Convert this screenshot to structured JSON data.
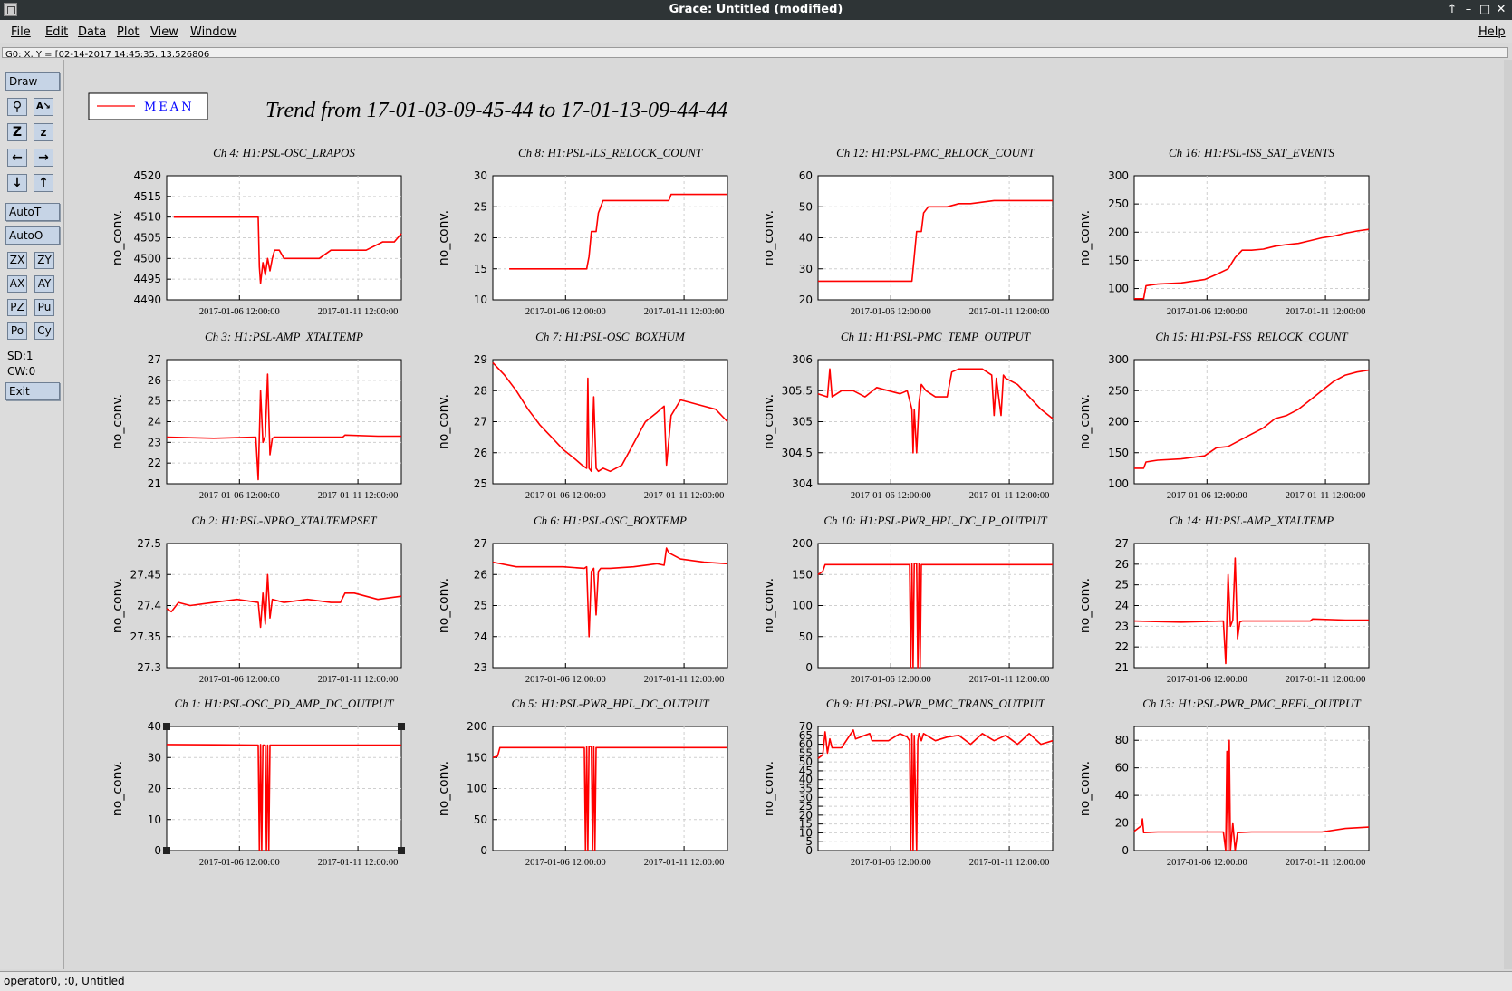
{
  "window": {
    "title": "Grace: Untitled (modified)"
  },
  "menu": {
    "file": "File",
    "edit": "Edit",
    "data": "Data",
    "plot": "Plot",
    "view": "View",
    "window": "Window",
    "help": "Help"
  },
  "locator": {
    "text": "G0: X, Y = [02-14-2017 14:45:35, 13.526806"
  },
  "toolbar": {
    "draw": "Draw",
    "autot": "AutoT",
    "autoo": "AutoO",
    "zx": "ZX",
    "zy": "ZY",
    "ax": "AX",
    "ay": "AY",
    "pz": "PZ",
    "pu": "Pu",
    "po": "Po",
    "cy": "Cy",
    "sd": "SD:1",
    "cw": "CW:0",
    "exit": "Exit",
    "icons": [
      "magnifier-icon",
      "autoscale-text-icon",
      "zoom-icon",
      "zoom-small-icon",
      "arrow-left-icon",
      "arrow-right-icon",
      "arrow-down-icon",
      "arrow-up-icon"
    ]
  },
  "status": {
    "text": "operator0, :0, Untitled"
  },
  "chart_data": {
    "type": "line",
    "title": "Trend from 17-01-03-09-45-44 to 17-01-13-09-44-44",
    "legend": {
      "entries": [
        "MEAN"
      ],
      "placement": "top-left",
      "color": "#ff0000"
    },
    "xticks": [
      "2017-01-06 12:00:00",
      "2017-01-11 12:00:00"
    ],
    "panels": [
      {
        "title": "Ch 4: H1:PSL-OSC_LRAPOS",
        "ylabel": "no_conv.",
        "ylim": [
          4490,
          4520
        ],
        "yticks": [
          "4490",
          "4495",
          "4500",
          "4505",
          "4510",
          "4515",
          "4520"
        ],
        "x": [
          0.03,
          0.39,
          0.395,
          0.4,
          0.41,
          0.42,
          0.43,
          0.44,
          0.45,
          0.46,
          0.48,
          0.5,
          0.53,
          0.55,
          0.6,
          0.65,
          0.7,
          0.75,
          0.85,
          0.92,
          0.97,
          1.0
        ],
        "y": [
          4510,
          4510,
          4498,
          4494,
          4499,
          4496,
          4500,
          4497,
          4500,
          4502,
          4502,
          4500,
          4500,
          4500,
          4500,
          4500,
          4502,
          4502,
          4502,
          4504,
          4504,
          4506
        ]
      },
      {
        "title": "Ch 8: H1:PSL-ILS_RELOCK_COUNT",
        "ylabel": "no_conv.",
        "ylim": [
          10,
          30
        ],
        "yticks": [
          "10",
          "15",
          "20",
          "25",
          "30"
        ],
        "x": [
          0.07,
          0.4,
          0.41,
          0.42,
          0.44,
          0.45,
          0.47,
          0.5,
          0.55,
          0.6,
          0.7,
          0.75,
          0.76,
          0.85,
          1.0
        ],
        "y": [
          15,
          15,
          17,
          21,
          21,
          24,
          26,
          26,
          26,
          26,
          26,
          26,
          27,
          27,
          27
        ]
      },
      {
        "title": "Ch 12: H1:PSL-PMC_RELOCK_COUNT",
        "ylabel": "no_conv.",
        "ylim": [
          20,
          60
        ],
        "yticks": [
          "20",
          "30",
          "40",
          "50",
          "60"
        ],
        "x": [
          0.0,
          0.4,
          0.41,
          0.42,
          0.44,
          0.45,
          0.47,
          0.55,
          0.6,
          0.65,
          0.75,
          0.85,
          1.0
        ],
        "y": [
          26,
          26,
          34,
          42,
          42,
          48,
          50,
          50,
          51,
          51,
          52,
          52,
          52
        ]
      },
      {
        "title": "Ch 16: H1:PSL-ISS_SAT_EVENTS",
        "ylabel": "no_conv.",
        "ylim": [
          80,
          300
        ],
        "yticks": [
          "100",
          "150",
          "200",
          "250",
          "300"
        ],
        "x": [
          0.0,
          0.04,
          0.05,
          0.1,
          0.2,
          0.3,
          0.35,
          0.4,
          0.43,
          0.46,
          0.5,
          0.55,
          0.6,
          0.65,
          0.7,
          0.75,
          0.8,
          0.85,
          0.9,
          0.95,
          1.0
        ],
        "y": [
          82,
          82,
          105,
          108,
          110,
          116,
          125,
          135,
          155,
          168,
          168,
          170,
          175,
          178,
          180,
          185,
          190,
          193,
          198,
          202,
          205
        ]
      },
      {
        "title": "Ch 3: H1:PSL-AMP_XTALTEMP",
        "ylabel": "no_conv.",
        "ylim": [
          21,
          27
        ],
        "yticks": [
          "21",
          "22",
          "23",
          "24",
          "25",
          "26",
          "27"
        ],
        "x": [
          0.0,
          0.2,
          0.38,
          0.39,
          0.4,
          0.41,
          0.42,
          0.43,
          0.44,
          0.45,
          0.46,
          0.6,
          0.75,
          0.76,
          0.9,
          1.0
        ],
        "y": [
          23.25,
          23.2,
          23.25,
          21.2,
          25.5,
          23.0,
          23.3,
          26.3,
          22.4,
          23.2,
          23.25,
          23.25,
          23.25,
          23.35,
          23.3,
          23.3
        ]
      },
      {
        "title": "Ch 7: H1:PSL-OSC_BOXHUM",
        "ylabel": "no_conv.",
        "ylim": [
          25,
          29
        ],
        "yticks": [
          "25",
          "26",
          "27",
          "28",
          "29"
        ],
        "x": [
          0.0,
          0.05,
          0.1,
          0.15,
          0.2,
          0.25,
          0.3,
          0.35,
          0.38,
          0.4,
          0.405,
          0.41,
          0.42,
          0.43,
          0.44,
          0.45,
          0.47,
          0.5,
          0.55,
          0.6,
          0.65,
          0.7,
          0.73,
          0.74,
          0.76,
          0.8,
          0.85,
          0.9,
          0.95,
          1.0
        ],
        "y": [
          28.9,
          28.5,
          28.0,
          27.4,
          26.9,
          26.5,
          26.1,
          25.8,
          25.6,
          25.5,
          28.4,
          25.5,
          25.4,
          27.8,
          25.5,
          25.4,
          25.5,
          25.4,
          25.6,
          26.3,
          27.0,
          27.3,
          27.5,
          25.6,
          27.2,
          27.7,
          27.6,
          27.5,
          27.4,
          27.0
        ]
      },
      {
        "title": "Ch 11: H1:PSL-PMC_TEMP_OUTPUT",
        "ylabel": "no_conv.",
        "ylim": [
          304,
          306
        ],
        "yticks": [
          "304",
          "304.5",
          "305",
          "305.5",
          "306"
        ],
        "x": [
          0.0,
          0.04,
          0.05,
          0.06,
          0.1,
          0.15,
          0.2,
          0.25,
          0.3,
          0.35,
          0.38,
          0.4,
          0.405,
          0.41,
          0.42,
          0.43,
          0.44,
          0.46,
          0.5,
          0.55,
          0.57,
          0.6,
          0.65,
          0.7,
          0.74,
          0.75,
          0.76,
          0.78,
          0.79,
          0.8,
          0.85,
          0.9,
          0.95,
          1.0
        ],
        "y": [
          305.45,
          305.4,
          305.85,
          305.4,
          305.5,
          305.5,
          305.4,
          305.55,
          305.5,
          305.45,
          305.5,
          305.2,
          304.5,
          305.2,
          304.5,
          305.3,
          305.6,
          305.5,
          305.4,
          305.4,
          305.8,
          305.85,
          305.85,
          305.85,
          305.75,
          305.1,
          305.7,
          305.1,
          305.75,
          305.7,
          305.6,
          305.4,
          305.2,
          305.05
        ]
      },
      {
        "title": "Ch 15: H1:PSL-FSS_RELOCK_COUNT",
        "ylabel": "no_conv.",
        "ylim": [
          100,
          300
        ],
        "yticks": [
          "100",
          "150",
          "200",
          "250",
          "300"
        ],
        "x": [
          0.0,
          0.04,
          0.05,
          0.1,
          0.2,
          0.3,
          0.35,
          0.4,
          0.45,
          0.5,
          0.55,
          0.6,
          0.65,
          0.7,
          0.75,
          0.8,
          0.85,
          0.9,
          0.95,
          1.0
        ],
        "y": [
          125,
          125,
          135,
          138,
          140,
          145,
          158,
          160,
          170,
          180,
          190,
          205,
          210,
          220,
          235,
          250,
          265,
          275,
          280,
          283
        ]
      },
      {
        "title": "Ch 2: H1:PSL-NPRO_XTALTEMPSET",
        "ylabel": "no_conv.",
        "ylim": [
          27.3,
          27.5
        ],
        "yticks": [
          "27.3",
          "27.35",
          "27.4",
          "27.45",
          "27.5"
        ],
        "x": [
          0.0,
          0.02,
          0.05,
          0.1,
          0.2,
          0.3,
          0.39,
          0.4,
          0.41,
          0.42,
          0.43,
          0.44,
          0.45,
          0.5,
          0.6,
          0.7,
          0.74,
          0.76,
          0.8,
          0.9,
          1.0
        ],
        "y": [
          27.395,
          27.39,
          27.405,
          27.4,
          27.405,
          27.41,
          27.405,
          27.365,
          27.42,
          27.37,
          27.45,
          27.38,
          27.41,
          27.405,
          27.41,
          27.405,
          27.405,
          27.42,
          27.42,
          27.41,
          27.415
        ]
      },
      {
        "title": "Ch 6: H1:PSL-OSC_BOXTEMP",
        "ylabel": "no_conv.",
        "ylim": [
          23,
          27
        ],
        "yticks": [
          "23",
          "24",
          "25",
          "26",
          "27"
        ],
        "x": [
          0.0,
          0.1,
          0.2,
          0.3,
          0.39,
          0.4,
          0.41,
          0.42,
          0.43,
          0.44,
          0.45,
          0.46,
          0.5,
          0.6,
          0.7,
          0.73,
          0.74,
          0.75,
          0.8,
          0.9,
          1.0
        ],
        "y": [
          26.4,
          26.25,
          26.25,
          26.25,
          26.2,
          26.25,
          24.0,
          26.1,
          26.2,
          24.7,
          26.1,
          26.2,
          26.2,
          26.25,
          26.35,
          26.3,
          26.85,
          26.7,
          26.5,
          26.4,
          26.35
        ]
      },
      {
        "title": "Ch 10: H1:PSL-PWR_HPL_DC_LP_OUTPUT",
        "ylabel": "no_conv.",
        "ylim": [
          0,
          200
        ],
        "yticks": [
          "0",
          "50",
          "100",
          "150",
          "200"
        ],
        "x": [
          0.0,
          0.02,
          0.03,
          0.2,
          0.39,
          0.395,
          0.4,
          0.405,
          0.41,
          0.42,
          0.425,
          0.43,
          0.435,
          0.44,
          0.5,
          0.7,
          0.9,
          1.0
        ],
        "y": [
          150,
          155,
          166,
          166,
          166,
          0,
          168,
          0,
          168,
          168,
          0,
          168,
          0,
          166,
          166,
          166,
          166,
          166
        ]
      },
      {
        "title": "Ch 14: H1:PSL-AMP_XTALTEMP",
        "ylabel": "no_conv.",
        "ylim": [
          21,
          27
        ],
        "yticks": [
          "21",
          "22",
          "23",
          "24",
          "25",
          "26",
          "27"
        ],
        "x": [
          0.0,
          0.2,
          0.38,
          0.39,
          0.4,
          0.41,
          0.42,
          0.43,
          0.44,
          0.45,
          0.46,
          0.6,
          0.75,
          0.76,
          0.9,
          1.0
        ],
        "y": [
          23.25,
          23.2,
          23.25,
          21.2,
          25.5,
          23.0,
          23.3,
          26.3,
          22.4,
          23.2,
          23.25,
          23.25,
          23.25,
          23.35,
          23.3,
          23.3
        ]
      },
      {
        "title": "Ch 1: H1:PSL-OSC_PD_AMP_DC_OUTPUT",
        "ylabel": "no_conv.",
        "ylim": [
          0,
          40
        ],
        "yticks": [
          "0",
          "10",
          "20",
          "30",
          "40"
        ],
        "x": [
          0.0,
          0.2,
          0.39,
          0.395,
          0.4,
          0.405,
          0.41,
          0.42,
          0.425,
          0.43,
          0.435,
          0.44,
          0.6,
          0.8,
          1.0
        ],
        "y": [
          34.2,
          34.1,
          34.0,
          0,
          34.2,
          0,
          34.0,
          34.0,
          0,
          34.0,
          0,
          34.0,
          34.0,
          34.0,
          34.0
        ]
      },
      {
        "title": "Ch 5: H1:PSL-PWR_HPL_DC_OUTPUT",
        "ylabel": "no_conv.",
        "ylim": [
          0,
          200
        ],
        "yticks": [
          "0",
          "50",
          "100",
          "150",
          "200"
        ],
        "x": [
          0.0,
          0.02,
          0.03,
          0.2,
          0.39,
          0.395,
          0.4,
          0.405,
          0.41,
          0.42,
          0.425,
          0.43,
          0.435,
          0.44,
          0.5,
          0.7,
          0.9,
          1.0
        ],
        "y": [
          150,
          152,
          166,
          166,
          166,
          0,
          168,
          0,
          168,
          168,
          0,
          168,
          0,
          166,
          166,
          166,
          166,
          166
        ]
      },
      {
        "title": "Ch 9: H1:PSL-PWR_PMC_TRANS_OUTPUT",
        "ylabel": "no_conv.",
        "ylim": [
          0,
          70
        ],
        "yticks": [
          "0",
          "5",
          "10",
          "15",
          "20",
          "25",
          "30",
          "35",
          "40",
          "45",
          "50",
          "55",
          "60",
          "65",
          "70"
        ],
        "x": [
          0.0,
          0.02,
          0.03,
          0.04,
          0.05,
          0.06,
          0.07,
          0.1,
          0.15,
          0.16,
          0.22,
          0.23,
          0.3,
          0.35,
          0.38,
          0.39,
          0.395,
          0.4,
          0.405,
          0.41,
          0.42,
          0.425,
          0.43,
          0.44,
          0.45,
          0.5,
          0.55,
          0.6,
          0.65,
          0.7,
          0.75,
          0.8,
          0.85,
          0.9,
          0.95,
          1.0
        ],
        "y": [
          52,
          54,
          67,
          55,
          63,
          58,
          58,
          58,
          68,
          63,
          66,
          62,
          62,
          66,
          64,
          62,
          0,
          66,
          0,
          65,
          0,
          62,
          66,
          62,
          66,
          62,
          64,
          65,
          60,
          66,
          62,
          65,
          60,
          66,
          60,
          62
        ]
      },
      {
        "title": "Ch 13: H1:PSL-PWR_PMC_REFL_OUTPUT",
        "ylabel": "no_conv.",
        "ylim": [
          0,
          90
        ],
        "yticks": [
          "0",
          "20",
          "40",
          "60",
          "80"
        ],
        "x": [
          0.0,
          0.03,
          0.035,
          0.04,
          0.1,
          0.2,
          0.38,
          0.39,
          0.395,
          0.4,
          0.405,
          0.41,
          0.42,
          0.43,
          0.44,
          0.5,
          0.6,
          0.8,
          0.9,
          1.0
        ],
        "y": [
          14,
          18,
          23,
          13,
          13.5,
          13.5,
          13.5,
          0,
          72,
          0,
          80,
          0,
          20,
          0,
          13,
          13.5,
          13.5,
          13.5,
          16,
          17
        ]
      }
    ]
  }
}
